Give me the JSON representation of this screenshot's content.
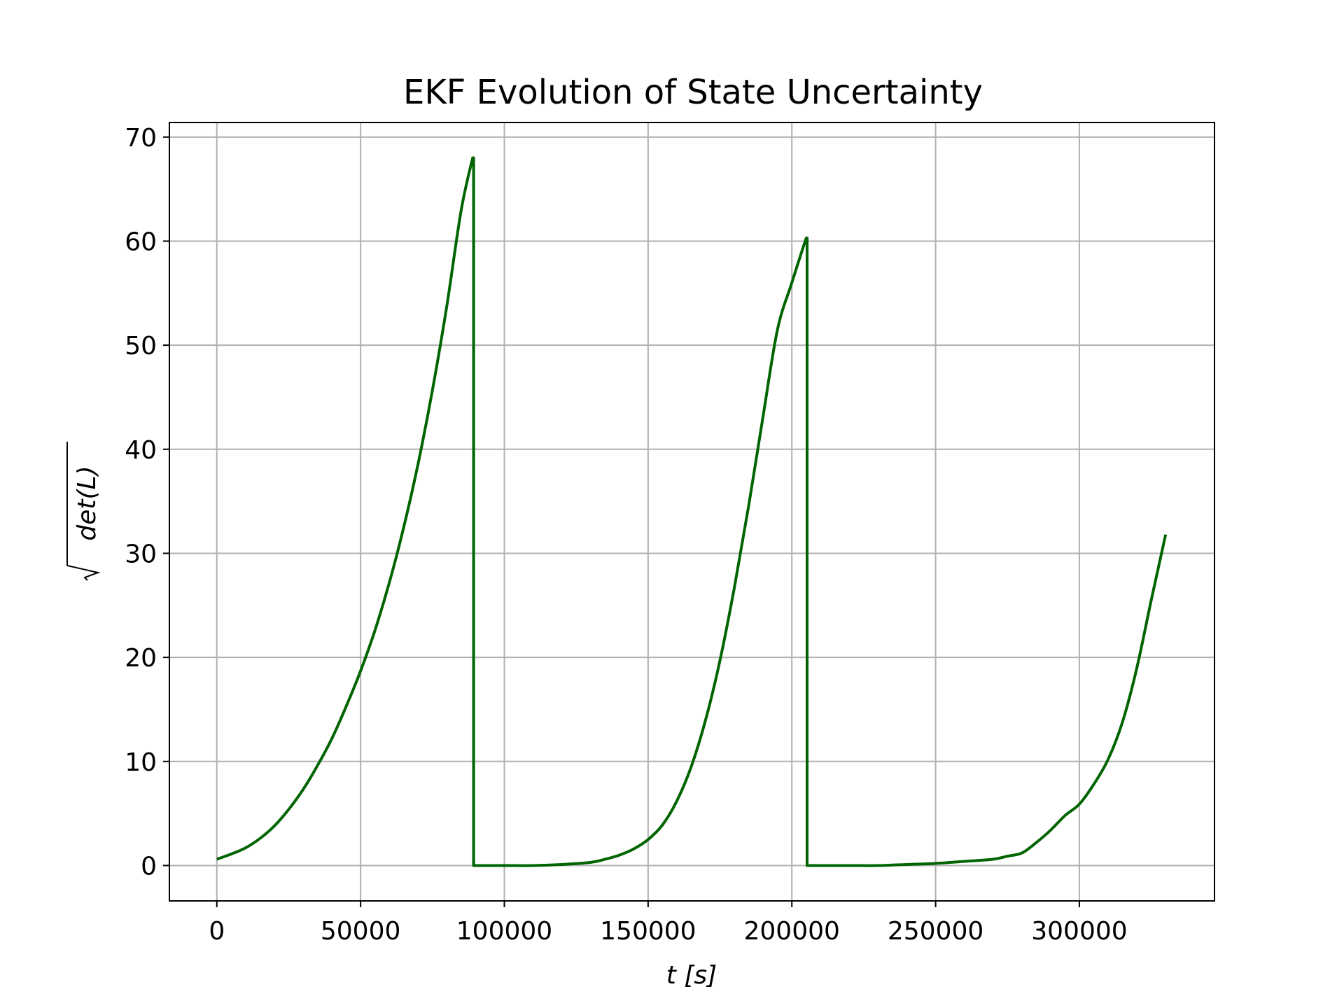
{
  "chart_data": {
    "type": "line",
    "title": "EKF Evolution of State Uncertainty",
    "xlabel": "t [s]",
    "ylabel": "det(L)",
    "ylabel_sqrt": true,
    "xlim": [
      -16500,
      347000
    ],
    "ylim": [
      -3.4,
      71.4
    ],
    "xticks": [
      0,
      50000,
      100000,
      150000,
      200000,
      250000,
      300000
    ],
    "yticks": [
      0,
      10,
      20,
      30,
      40,
      50,
      60,
      70
    ],
    "grid": true,
    "series": [
      {
        "color": "#006400",
        "x": [
          0,
          5000,
          10000,
          15000,
          20000,
          25000,
          30000,
          35000,
          40000,
          45000,
          50000,
          55000,
          60000,
          65000,
          70000,
          75000,
          80000,
          85000,
          89000,
          89300,
          89300,
          95000,
          100000,
          110000,
          120000,
          130000,
          135000,
          140000,
          145000,
          150000,
          155000,
          160000,
          165000,
          170000,
          175000,
          180000,
          185000,
          190000,
          195000,
          200000,
          205000,
          205300,
          205300,
          210000,
          220000,
          230000,
          240000,
          250000,
          260000,
          270000,
          275000,
          280000,
          285000,
          290000,
          295000,
          300000,
          305000,
          310000,
          315000,
          320000,
          325000,
          330000
        ],
        "y": [
          0.6,
          1.1,
          1.7,
          2.6,
          3.8,
          5.4,
          7.3,
          9.6,
          12.2,
          15.3,
          18.7,
          22.6,
          27.2,
          32.5,
          38.6,
          45.7,
          53.8,
          63.0,
          68.0,
          68.0,
          0.0,
          0.0,
          0.0,
          0.0,
          0.1,
          0.3,
          0.6,
          1.0,
          1.6,
          2.5,
          3.9,
          6.2,
          9.5,
          14.0,
          19.7,
          26.7,
          34.6,
          43.2,
          51.5,
          56.0,
          60.3,
          60.3,
          0.0,
          0.0,
          0.0,
          0.0,
          0.1,
          0.2,
          0.4,
          0.6,
          0.9,
          1.2,
          2.2,
          3.4,
          4.8,
          5.9,
          7.8,
          10.2,
          13.8,
          19.0,
          25.5,
          31.8
        ]
      }
    ]
  }
}
